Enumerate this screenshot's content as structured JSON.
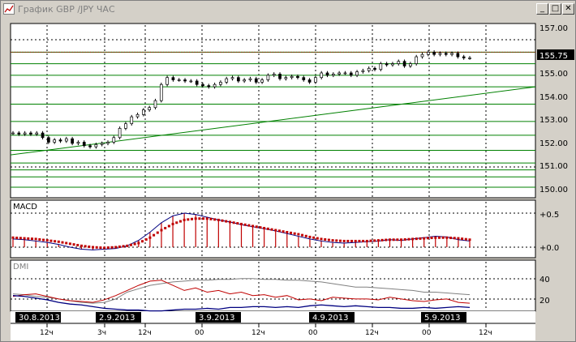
{
  "window": {
    "title": "График GBP /JPY ЧАС",
    "buttons": {
      "minimize": "_",
      "maximize": "□",
      "close": "✕"
    }
  },
  "price_panel": {
    "y_ticks": [
      "157.00",
      "155.00",
      "154.00",
      "153.00",
      "152.00",
      "151.00",
      "150.00"
    ],
    "current_price": "155.75"
  },
  "macd_panel": {
    "label": "MACD",
    "y_ticks": [
      "+0.5",
      "+0.0"
    ]
  },
  "dmi_panel": {
    "label": "DMI",
    "y_ticks": [
      "40",
      "20"
    ]
  },
  "time_axis": {
    "date_badges": [
      "30.8.2013",
      "2.9.2013",
      "3.9.2013",
      "4.9.2013",
      "5.9.2013"
    ],
    "hour_ticks": [
      "12ч",
      "3ч",
      "12ч",
      "00",
      "12ч",
      "00",
      "12ч",
      "00",
      "12ч"
    ]
  },
  "chart_data": {
    "type": "candlestick",
    "symbol": "GBP/JPY",
    "timeframe": "H1",
    "ylim": [
      149.8,
      157.1
    ],
    "close_prices": [
      152.5,
      152.45,
      152.5,
      152.45,
      152.5,
      152.3,
      152.1,
      152.2,
      152.15,
      152.25,
      152.05,
      152.1,
      151.95,
      151.9,
      152.0,
      152.05,
      152.1,
      152.3,
      152.7,
      152.9,
      153.2,
      153.3,
      153.5,
      153.6,
      153.9,
      154.6,
      154.9,
      154.8,
      154.8,
      154.75,
      154.75,
      154.6,
      154.55,
      154.5,
      154.6,
      154.7,
      154.85,
      154.9,
      154.75,
      154.8,
      154.85,
      154.7,
      154.8,
      155.0,
      155.05,
      154.85,
      154.9,
      154.95,
      154.9,
      154.8,
      154.7,
      154.9,
      155.1,
      155.0,
      155.05,
      155.1,
      155.1,
      155.0,
      155.15,
      155.2,
      155.3,
      155.25,
      155.5,
      155.45,
      155.5,
      155.6,
      155.4,
      155.5,
      155.8,
      155.9,
      156.0,
      155.9,
      155.95,
      155.9,
      155.95,
      155.8,
      155.75,
      155.75
    ],
    "reference_line": 156.0,
    "horizontal_levels": [
      156.0,
      155.5,
      155.0,
      154.5,
      153.75,
      153.0,
      152.4,
      151.75,
      151.2,
      150.9,
      150.6,
      150.15
    ],
    "trendline": {
      "start": 151.55,
      "end": 154.5
    },
    "macd": {
      "line": [
        0.12,
        0.11,
        0.09,
        0.07,
        0.04,
        0.0,
        -0.03,
        -0.04,
        -0.03,
        -0.02,
        0.02,
        0.1,
        0.22,
        0.36,
        0.46,
        0.5,
        0.48,
        0.44,
        0.4,
        0.37,
        0.33,
        0.3,
        0.27,
        0.24,
        0.2,
        0.16,
        0.12,
        0.09,
        0.07,
        0.06,
        0.07,
        0.08,
        0.09,
        0.11,
        0.1,
        0.12,
        0.14,
        0.16,
        0.15,
        0.11,
        0.09
      ],
      "signal": [
        0.14,
        0.13,
        0.12,
        0.1,
        0.08,
        0.05,
        0.02,
        0.0,
        -0.01,
        0.0,
        0.02,
        0.06,
        0.14,
        0.25,
        0.34,
        0.4,
        0.42,
        0.42,
        0.4,
        0.37,
        0.34,
        0.31,
        0.28,
        0.25,
        0.22,
        0.19,
        0.15,
        0.12,
        0.1,
        0.09,
        0.09,
        0.09,
        0.1,
        0.11,
        0.11,
        0.12,
        0.13,
        0.14,
        0.14,
        0.13,
        0.11
      ]
    },
    "dmi": {
      "adx": [
        28,
        27,
        25,
        24,
        22,
        20,
        18,
        17,
        18,
        22,
        30,
        34,
        38,
        40,
        42,
        43,
        44,
        44,
        45,
        45,
        46,
        46,
        45,
        45,
        44,
        44,
        43,
        42,
        40,
        38,
        36,
        36,
        35,
        34,
        33,
        32,
        30,
        30,
        29,
        28,
        27
      ],
      "plus_di": [
        25,
        27,
        28,
        25,
        22,
        20,
        19,
        18,
        21,
        26,
        32,
        38,
        43,
        44,
        38,
        32,
        35,
        30,
        32,
        28,
        30,
        26,
        27,
        24,
        26,
        21,
        22,
        20,
        24,
        23,
        22,
        22,
        21,
        24,
        22,
        20,
        19,
        21,
        22,
        18,
        17
      ],
      "minus_di": [
        26,
        25,
        23,
        21,
        18,
        16,
        15,
        13,
        11,
        10,
        9,
        9,
        8,
        8,
        9,
        10,
        10,
        11,
        10,
        12,
        12,
        13,
        13,
        12,
        13,
        12,
        14,
        15,
        14,
        13,
        14,
        13,
        12,
        12,
        11,
        11,
        12,
        11,
        12,
        13,
        12
      ]
    }
  }
}
